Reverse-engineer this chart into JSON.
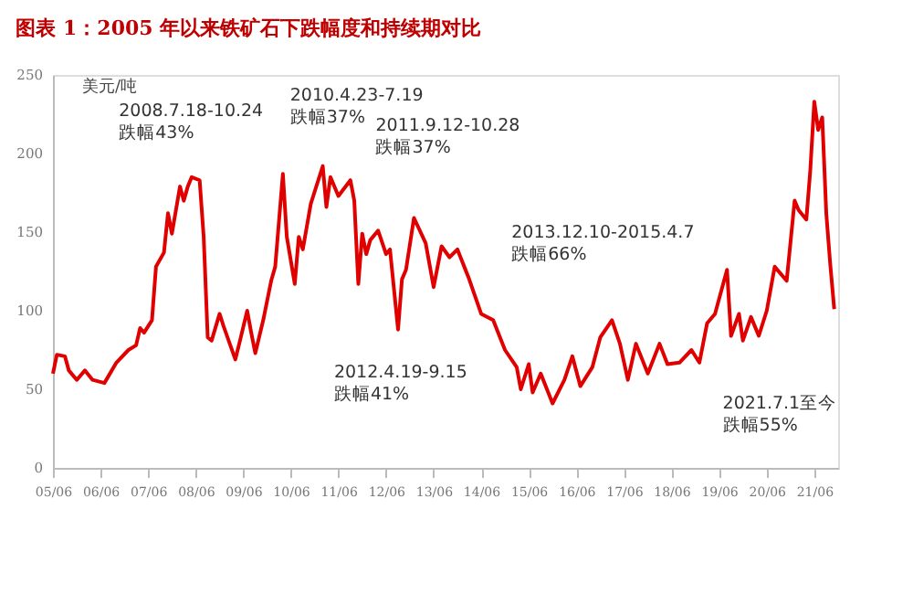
{
  "chart_data": {
    "type": "line",
    "title": "图表 1：2005 年以来铁矿石下跌幅度和持续期对比",
    "ylabel": "美元/吨",
    "x": [
      "2005-06",
      "2005-07",
      "2005-09",
      "2005-10",
      "2005-12",
      "2006-02",
      "2006-04",
      "2006-07",
      "2006-10",
      "2007-01",
      "2007-03",
      "2007-04",
      "2007-05",
      "2007-07",
      "2007-08",
      "2007-10",
      "2007-11",
      "2007-12",
      "2008-02",
      "2008-03",
      "2008-04",
      "2008-05",
      "2008-07",
      "2008-08",
      "2008-09",
      "2008-10",
      "2008-12",
      "2009-01",
      "2009-04",
      "2009-05",
      "2009-07",
      "2009-08",
      "2009-09",
      "2009-11",
      "2010-01",
      "2010-02",
      "2010-04",
      "2010-05",
      "2010-07",
      "2010-08",
      "2010-09",
      "2010-11",
      "2011-02",
      "2011-03",
      "2011-04",
      "2011-06",
      "2011-09",
      "2011-10",
      "2011-11",
      "2011-12",
      "2012-01",
      "2012-02",
      "2012-04",
      "2012-06",
      "2012-07",
      "2012-09",
      "2012-10",
      "2012-11",
      "2013-01",
      "2013-04",
      "2013-06",
      "2013-08",
      "2013-10",
      "2013-12",
      "2014-03",
      "2014-06",
      "2014-09",
      "2014-12",
      "2015-03",
      "2015-04",
      "2015-06",
      "2015-07",
      "2015-09",
      "2015-12",
      "2016-03",
      "2016-05",
      "2016-07",
      "2016-10",
      "2016-12",
      "2017-03",
      "2017-05",
      "2017-07",
      "2017-09",
      "2017-12",
      "2018-03",
      "2018-05",
      "2018-08",
      "2018-11",
      "2019-01",
      "2019-03",
      "2019-05",
      "2019-08",
      "2019-09",
      "2019-11",
      "2019-12",
      "2020-02",
      "2020-04",
      "2020-06",
      "2020-08",
      "2020-11",
      "2021-01",
      "2021-02",
      "2021-04",
      "2021-05",
      "2021-06",
      "2021-07",
      "2021-08",
      "2021-09",
      "2021-10",
      "2021-11"
    ],
    "series": [
      {
        "color": "#e00000",
        "values": [
          60,
          72,
          71,
          62,
          56,
          62,
          56,
          54,
          67,
          75,
          78,
          89,
          86,
          94,
          128,
          137,
          162,
          149,
          179,
          170,
          179,
          185,
          183,
          147,
          83,
          81,
          98,
          90,
          69,
          79,
          100,
          86,
          73,
          94,
          119,
          128,
          187,
          147,
          117,
          147,
          139,
          168,
          192,
          166,
          185,
          173,
          183,
          170,
          117,
          149,
          136,
          145,
          151,
          136,
          139,
          88,
          120,
          126,
          159,
          143,
          115,
          141,
          134,
          139,
          120,
          98,
          94,
          75,
          64,
          50,
          66,
          48,
          60,
          41,
          56,
          71,
          52,
          64,
          83,
          94,
          79,
          56,
          79,
          60,
          79,
          66,
          67,
          75,
          67,
          92,
          98,
          126,
          84,
          98,
          81,
          96,
          84,
          100,
          128,
          119,
          170,
          164,
          158,
          189,
          233,
          215,
          223,
          162,
          130,
          101
        ]
      }
    ],
    "xlim": [
      "2005-06",
      "2021-12"
    ],
    "xticks": [
      {
        "value": "2005-06",
        "label": "05/06"
      },
      {
        "value": "2006-06",
        "label": "06/06"
      },
      {
        "value": "2007-06",
        "label": "07/06"
      },
      {
        "value": "2008-06",
        "label": "08/06"
      },
      {
        "value": "2009-06",
        "label": "09/06"
      },
      {
        "value": "2010-06",
        "label": "10/06"
      },
      {
        "value": "2011-06",
        "label": "11/06"
      },
      {
        "value": "2012-06",
        "label": "12/06"
      },
      {
        "value": "2013-06",
        "label": "13/06"
      },
      {
        "value": "2014-06",
        "label": "14/06"
      },
      {
        "value": "2015-06",
        "label": "15/06"
      },
      {
        "value": "2016-06",
        "label": "16/06"
      },
      {
        "value": "2017-06",
        "label": "17/06"
      },
      {
        "value": "2018-06",
        "label": "18/06"
      },
      {
        "value": "2019-06",
        "label": "19/06"
      },
      {
        "value": "2020-06",
        "label": "20/06"
      },
      {
        "value": "2021-06",
        "label": "21/06"
      }
    ],
    "ylim": [
      0,
      250
    ],
    "yticks": [
      0,
      50,
      100,
      150,
      200,
      250
    ],
    "grid": false,
    "marker": "none",
    "line_style": "solid",
    "annotations": [
      "2008.7.18-10.24",
      "跌幅43%",
      "2010.4.23-7.19",
      "跌幅37%",
      "2011.9.12-10.28",
      "跌幅37%",
      "2013.12.10-2015.4.7",
      "跌幅66%",
      "2012.4.19-9.15",
      "跌幅41%",
      "2021.7.1至今",
      "跌幅55%"
    ]
  }
}
